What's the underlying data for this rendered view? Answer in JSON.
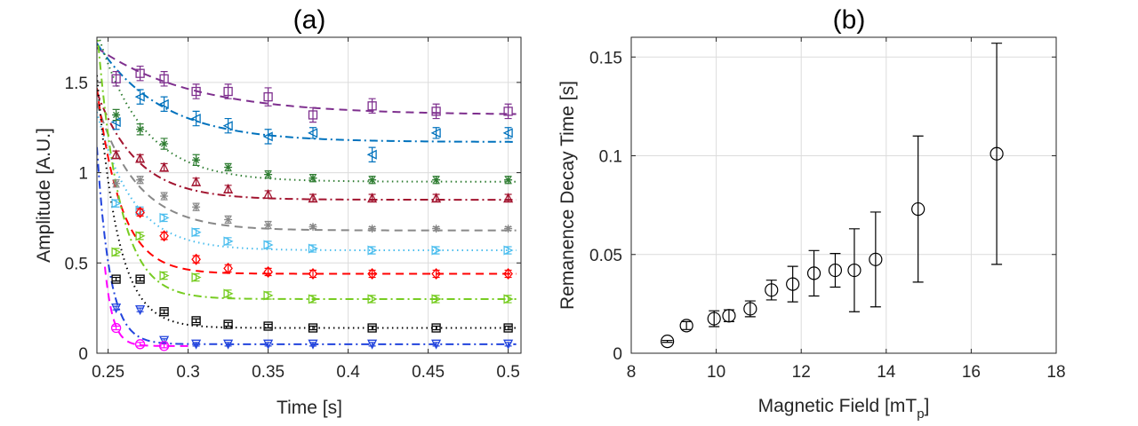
{
  "chart_data": [
    {
      "type": "scatter",
      "panel_label": "(a)",
      "xlabel": "Time [s]",
      "ylabel": "Amplitude [A.U.]",
      "xlim": [
        0.243,
        0.508
      ],
      "ylim": [
        0,
        1.75
      ],
      "xticks": [
        0.25,
        0.3,
        0.35,
        0.4,
        0.45,
        0.5
      ],
      "xtick_labels": [
        "0.25",
        "0.3",
        "0.35",
        "0.4",
        "0.45",
        "0.5"
      ],
      "yticks": [
        0,
        0.5,
        1,
        1.5
      ],
      "ytick_labels": [
        "0",
        "0.5",
        "1",
        "1.5"
      ],
      "grid": true,
      "series": [
        {
          "color": "#7e2f8e",
          "marker": "square",
          "line": "dashed",
          "x": [
            0.255,
            0.27,
            0.285,
            0.305,
            0.325,
            0.35,
            0.378,
            0.415,
            0.455,
            0.5
          ],
          "y": [
            1.52,
            1.55,
            1.52,
            1.45,
            1.45,
            1.42,
            1.32,
            1.37,
            1.34,
            1.34
          ],
          "err": [
            0.04,
            0.04,
            0.04,
            0.04,
            0.04,
            0.05,
            0.04,
            0.04,
            0.04,
            0.04
          ],
          "fit": {
            "a": 0.36,
            "tau": 0.06,
            "c": 1.32
          }
        },
        {
          "color": "#0072bd",
          "marker": "triangle-left",
          "line": "dashdot",
          "x": [
            0.255,
            0.27,
            0.285,
            0.305,
            0.325,
            0.35,
            0.378,
            0.415,
            0.455,
            0.5
          ],
          "y": [
            1.28,
            1.42,
            1.38,
            1.3,
            1.26,
            1.2,
            1.22,
            1.1,
            1.22,
            1.22
          ],
          "err": [
            0.04,
            0.04,
            0.04,
            0.04,
            0.04,
            0.04,
            0.03,
            0.04,
            0.03,
            0.03
          ],
          "fit": {
            "a": 0.52,
            "tau": 0.04,
            "c": 1.17
          }
        },
        {
          "color": "#2f7d32",
          "marker": "asterisk",
          "line": "dotted",
          "x": [
            0.255,
            0.27,
            0.285,
            0.305,
            0.325,
            0.35,
            0.378,
            0.415,
            0.455,
            0.5
          ],
          "y": [
            1.32,
            1.24,
            1.16,
            1.07,
            1.03,
            0.99,
            0.97,
            0.96,
            0.96,
            0.96
          ],
          "err": [
            0.03,
            0.03,
            0.03,
            0.03,
            0.02,
            0.02,
            0.02,
            0.02,
            0.02,
            0.02
          ],
          "fit": {
            "a": 0.78,
            "tau": 0.028,
            "c": 0.95
          }
        },
        {
          "color": "#a2142f",
          "marker": "triangle-up",
          "line": "dashdot",
          "x": [
            0.255,
            0.27,
            0.285,
            0.305,
            0.325,
            0.35,
            0.378,
            0.415,
            0.455,
            0.5
          ],
          "y": [
            1.1,
            1.08,
            1.03,
            0.95,
            0.91,
            0.88,
            0.86,
            0.86,
            0.86,
            0.86
          ],
          "err": [
            0.02,
            0.02,
            0.02,
            0.02,
            0.02,
            0.02,
            0.02,
            0.02,
            0.02,
            0.02
          ],
          "fit": {
            "a": 0.55,
            "tau": 0.025,
            "c": 0.85
          }
        },
        {
          "color": "#888888",
          "marker": "star",
          "line": "dashed",
          "x": [
            0.255,
            0.27,
            0.285,
            0.305,
            0.325,
            0.35,
            0.378,
            0.415,
            0.455,
            0.5
          ],
          "y": [
            0.94,
            0.96,
            0.87,
            0.81,
            0.74,
            0.71,
            0.7,
            0.69,
            0.69,
            0.69
          ],
          "err": [
            0.02,
            0.02,
            0.02,
            0.02,
            0.02,
            0.02,
            0.01,
            0.01,
            0.01,
            0.01
          ],
          "fit": {
            "a": 0.65,
            "tau": 0.025,
            "c": 0.68
          }
        },
        {
          "color": "#4dbeee",
          "marker": "triangle-right",
          "line": "dotted",
          "x": [
            0.255,
            0.27,
            0.285,
            0.305,
            0.325,
            0.35,
            0.378,
            0.415,
            0.455,
            0.5
          ],
          "y": [
            0.83,
            0.79,
            0.75,
            0.67,
            0.62,
            0.6,
            0.58,
            0.57,
            0.57,
            0.57
          ],
          "err": [
            0.02,
            0.02,
            0.02,
            0.02,
            0.02,
            0.02,
            0.02,
            0.02,
            0.02,
            0.02
          ],
          "fit": {
            "a": 0.7,
            "tau": 0.022,
            "c": 0.57
          }
        },
        {
          "color": "#ff0000",
          "marker": "diamond",
          "line": "dashed",
          "x": [
            0.27,
            0.285,
            0.305,
            0.325,
            0.35,
            0.378,
            0.415,
            0.455,
            0.5
          ],
          "y": [
            0.78,
            0.65,
            0.52,
            0.47,
            0.45,
            0.44,
            0.44,
            0.44,
            0.44
          ],
          "err": [
            0.02,
            0.02,
            0.02,
            0.02,
            0.02,
            0.02,
            0.02,
            0.02,
            0.02
          ],
          "fit": {
            "a": 0.9,
            "tau": 0.015,
            "c": 0.44
          }
        },
        {
          "color": "#77cc22",
          "marker": "triangle-right",
          "line": "dashdot",
          "x": [
            0.255,
            0.27,
            0.285,
            0.305,
            0.325,
            0.35,
            0.378,
            0.415,
            0.455,
            0.5
          ],
          "y": [
            0.56,
            0.65,
            0.43,
            0.42,
            0.33,
            0.32,
            0.3,
            0.3,
            0.3,
            0.3
          ],
          "err": [
            0.02,
            0.02,
            0.02,
            0.02,
            0.02,
            0.02,
            0.02,
            0.02,
            0.02,
            0.02
          ],
          "fit": {
            "a": 1.3,
            "tau": 0.014,
            "c": 0.3
          }
        },
        {
          "color": "#000000",
          "marker": "square",
          "line": "dotted",
          "x": [
            0.255,
            0.27,
            0.285,
            0.305,
            0.325,
            0.35,
            0.378,
            0.415,
            0.455,
            0.5
          ],
          "y": [
            0.41,
            0.41,
            0.23,
            0.18,
            0.16,
            0.15,
            0.14,
            0.14,
            0.14,
            0.14
          ],
          "err": [
            0.01,
            0.01,
            0.01,
            0.01,
            0.01,
            0.01,
            0.01,
            0.01,
            0.01,
            0.01
          ],
          "fit": {
            "a": 1.2,
            "tau": 0.013,
            "c": 0.14
          }
        },
        {
          "color": "#2244dd",
          "marker": "triangle-down",
          "line": "dashdot",
          "x": [
            0.255,
            0.27,
            0.285,
            0.305,
            0.325,
            0.35,
            0.378,
            0.415,
            0.455,
            0.5
          ],
          "y": [
            0.25,
            0.24,
            0.07,
            0.05,
            0.05,
            0.05,
            0.05,
            0.05,
            0.05,
            0.05
          ],
          "err": [
            0.01,
            0.01,
            0.01,
            0.01,
            0.01,
            0.01,
            0.01,
            0.01,
            0.01,
            0.01
          ],
          "fit": {
            "a": 0.85,
            "tau": 0.008,
            "c": 0.05
          }
        },
        {
          "color": "#ff00ff",
          "marker": "circle",
          "line": "dashed",
          "x": [
            0.255,
            0.27,
            0.285
          ],
          "y": [
            0.14,
            0.05,
            0.04
          ],
          "err": [
            0.01,
            0.01,
            0.01
          ],
          "fit": {
            "a": 0.8,
            "tau": 0.005,
            "c": 0.04,
            "xmin": 0.248,
            "xmax": 0.3
          }
        }
      ]
    },
    {
      "type": "scatter",
      "panel_label": "(b)",
      "xlabel": "Magnetic Field [mT",
      "xlabel_sub": "p",
      "xlabel_end": "]",
      "ylabel": "Remanence Decay Time [s]",
      "xlim": [
        8,
        18
      ],
      "ylim": [
        0,
        0.16
      ],
      "xticks": [
        8,
        10,
        12,
        14,
        16,
        18
      ],
      "xtick_labels": [
        "8",
        "10",
        "12",
        "14",
        "16",
        "18"
      ],
      "yticks": [
        0,
        0.05,
        0.1,
        0.15
      ],
      "ytick_labels": [
        "0",
        "0.05",
        "0.1",
        "0.15"
      ],
      "grid": true,
      "series": [
        {
          "color": "#000000",
          "marker": "circle",
          "x": [
            8.85,
            9.3,
            9.95,
            10.3,
            10.8,
            11.3,
            11.8,
            12.3,
            12.8,
            13.25,
            13.75,
            14.75,
            16.6
          ],
          "y": [
            0.006,
            0.014,
            0.0175,
            0.019,
            0.0225,
            0.032,
            0.035,
            0.0405,
            0.042,
            0.042,
            0.0475,
            0.073,
            0.101
          ],
          "err_low": [
            0.0005,
            0.002,
            0.004,
            0.003,
            0.004,
            0.005,
            0.009,
            0.0115,
            0.0085,
            0.021,
            0.024,
            0.037,
            0.056
          ],
          "err_high": [
            0.0005,
            0.002,
            0.004,
            0.003,
            0.004,
            0.005,
            0.009,
            0.0115,
            0.0085,
            0.021,
            0.024,
            0.037,
            0.056
          ]
        }
      ]
    }
  ]
}
